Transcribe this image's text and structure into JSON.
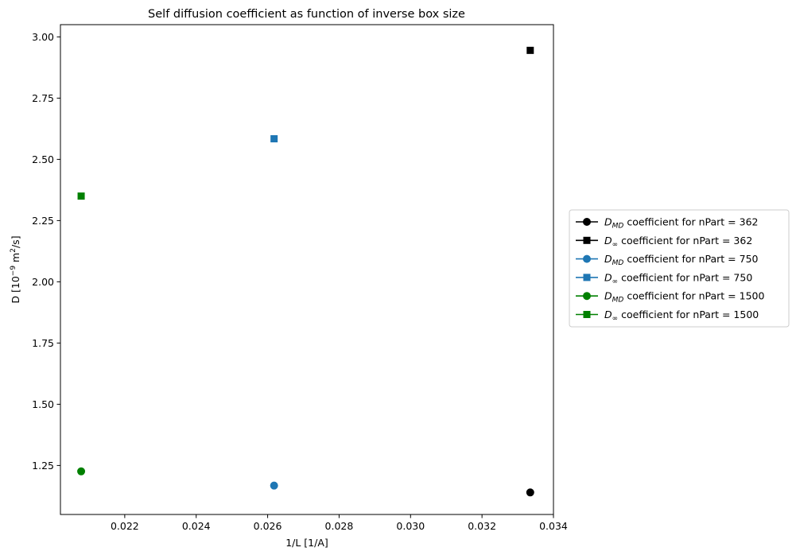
{
  "chart_data": {
    "type": "scatter",
    "title": "Self diffusion coefficient as function of inverse box size",
    "xlabel": "1/L  [1/A]",
    "ylabel_prefix": "D  [10",
    "ylabel_exp": "−9",
    "ylabel_mid": " m",
    "ylabel_sq": "2",
    "ylabel_suffix": "/s]",
    "xlim": [
      0.0202,
      0.034
    ],
    "ylim": [
      1.05,
      3.05
    ],
    "xticks": [
      0.022,
      0.024,
      0.026,
      0.028,
      0.03,
      0.032,
      0.034
    ],
    "xtick_labels": [
      "0.022",
      "0.024",
      "0.026",
      "0.028",
      "0.030",
      "0.032",
      "0.034"
    ],
    "yticks": [
      1.25,
      1.5,
      1.75,
      2.0,
      2.25,
      2.5,
      2.75,
      3.0
    ],
    "ytick_labels": [
      "1.25",
      "1.50",
      "1.75",
      "2.00",
      "2.25",
      "2.50",
      "2.75",
      "3.00"
    ],
    "grid": false,
    "legend_placement": "outside-right",
    "series": [
      {
        "name": "D_MD coefficient for nPart = 362",
        "legend_sym": "D",
        "legend_sub": "MD",
        "legend_text": " coefficient for nPart = 362",
        "marker": "circle",
        "color": "#000000",
        "x": [
          0.03335
        ],
        "y": [
          1.14
        ]
      },
      {
        "name": "D_∞ coefficient for nPart = 362",
        "legend_sym": "D",
        "legend_sub": "∞",
        "legend_text": " coefficient for nPart = 362",
        "marker": "square",
        "color": "#000000",
        "x": [
          0.03335
        ],
        "y": [
          2.945
        ]
      },
      {
        "name": "D_MD coefficient for nPart = 750",
        "legend_sym": "D",
        "legend_sub": "MD",
        "legend_text": " coefficient for nPart = 750",
        "marker": "circle",
        "color": "#1f77b4",
        "x": [
          0.02618
        ],
        "y": [
          1.168
        ]
      },
      {
        "name": "D_∞ coefficient for nPart = 750",
        "legend_sym": "D",
        "legend_sub": "∞",
        "legend_text": " coefficient for nPart = 750",
        "marker": "square",
        "color": "#1f77b4",
        "x": [
          0.02618
        ],
        "y": [
          2.584
        ]
      },
      {
        "name": "D_MD coefficient for nPart = 1500",
        "legend_sym": "D",
        "legend_sub": "MD",
        "legend_text": " coefficient for nPart = 1500",
        "marker": "circle",
        "color": "#008000",
        "x": [
          0.02078
        ],
        "y": [
          1.226
        ]
      },
      {
        "name": "D_∞ coefficient for nPart = 1500",
        "legend_sym": "D",
        "legend_sub": "∞",
        "legend_text": " coefficient for nPart = 1500",
        "marker": "square",
        "color": "#008000",
        "x": [
          0.02078
        ],
        "y": [
          2.35
        ]
      }
    ]
  }
}
